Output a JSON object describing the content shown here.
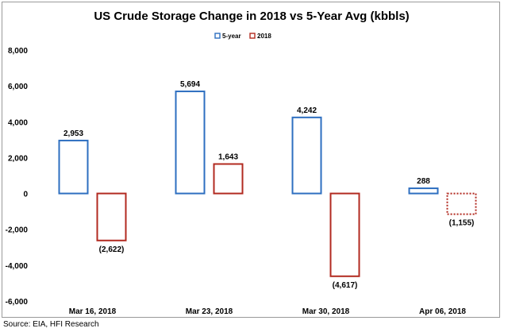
{
  "chart_data": {
    "type": "bar",
    "title": "US Crude Storage Change in 2018 vs 5-Year Avg (kbbls)",
    "xlabel": "",
    "ylabel": "",
    "categories": [
      "Mar 16, 2018",
      "Mar 23, 2018",
      "Mar 30, 2018",
      "Apr 06, 2018"
    ],
    "series": [
      {
        "name": "5-year",
        "values": [
          2953,
          5694,
          4242,
          288
        ],
        "labels": [
          "2,953",
          "5,694",
          "4,242",
          "288"
        ],
        "color": "#2e6fc0",
        "style": [
          "solid",
          "solid",
          "solid",
          "solid"
        ]
      },
      {
        "name": "2018",
        "values": [
          -2622,
          1643,
          -4617,
          -1155
        ],
        "labels": [
          "(2,622)",
          "1,643",
          "(4,617)",
          "(1,155)"
        ],
        "color": "#b22a20",
        "style": [
          "solid",
          "solid",
          "solid",
          "dotted"
        ]
      }
    ],
    "ylim": [
      -6000,
      8000
    ],
    "yticks": [
      8000,
      6000,
      4000,
      2000,
      0,
      -2000,
      -4000,
      -6000
    ],
    "ytick_labels": [
      "8,000",
      "6,000",
      "4,000",
      "2,000",
      "0",
      "-2,000",
      "-4,000",
      "-6,000"
    ],
    "grid": false,
    "legend_position": "top-center"
  },
  "source": "Source: EIA, HFI Research"
}
